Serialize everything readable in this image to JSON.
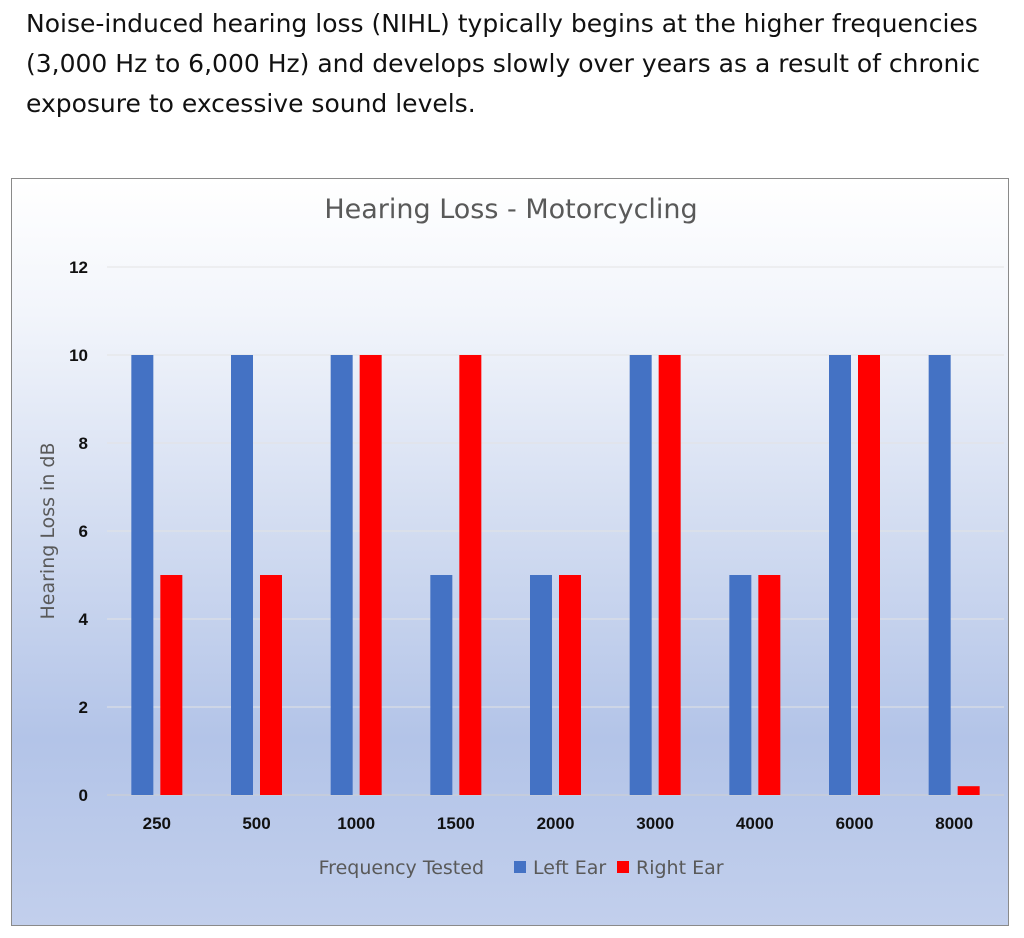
{
  "intro_text": "Noise-induced hearing loss (NIHL) typically begins at the higher frequencies (3,000 Hz to 6,000 Hz) and develops slowly over years as a result of chronic exposure to excessive sound levels.",
  "chart_data": {
    "type": "bar",
    "title": "Hearing Loss - Motorcycling",
    "xlabel": "Frequency Tested",
    "ylabel": "Hearing Loss in dB",
    "categories": [
      "250",
      "500",
      "1000",
      "1500",
      "2000",
      "3000",
      "4000",
      "6000",
      "8000"
    ],
    "series": [
      {
        "name": "Left Ear",
        "color": "#4472C4",
        "values": [
          10,
          10,
          10,
          5,
          5,
          10,
          5,
          10,
          10
        ]
      },
      {
        "name": "Right Ear",
        "color": "#FF0000",
        "values": [
          5,
          5,
          10,
          10,
          5,
          10,
          5,
          10,
          0.2
        ]
      }
    ],
    "ylim": [
      0,
      12
    ],
    "yticks": [
      0,
      2,
      4,
      6,
      8,
      10,
      12
    ],
    "grid": true,
    "legend_position": "bottom"
  }
}
